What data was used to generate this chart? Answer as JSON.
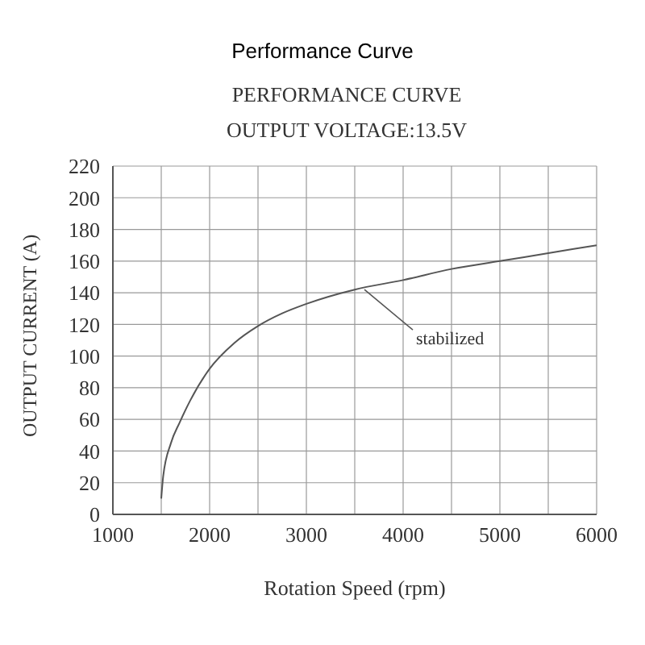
{
  "chart_data": {
    "type": "line",
    "title": "Performance Curve",
    "subtitle": "PERFORMANCE CURVE\nOUTPUT VOLTAGE:13.5V",
    "xlabel": "Rotation Speed (rpm)",
    "ylabel": "OUTPUT CURRENT (A)",
    "series": [
      {
        "color": "#555555",
        "x": [
          1500,
          1520,
          1600,
          1690,
          1800,
          2000,
          2250,
          2500,
          2750,
          3000,
          3500,
          4000,
          4500,
          5000,
          5500,
          6000
        ],
        "values": [
          10,
          24,
          45,
          58,
          72,
          92,
          108,
          119,
          127,
          133,
          142,
          148,
          155,
          160,
          165,
          170
        ]
      }
    ],
    "annotations": [
      {
        "text": "stabilized",
        "x": 3600,
        "y": 142
      }
    ],
    "xlim": [
      1000,
      6000
    ],
    "xticks": [
      1000,
      {
        "value": 1500,
        "label": null
      },
      2000,
      {
        "value": 2500,
        "label": null
      },
      3000,
      {
        "value": 3500,
        "label": null
      },
      4000,
      {
        "value": 4500,
        "label": null
      },
      5000,
      {
        "value": 5500,
        "label": null
      },
      6000
    ],
    "ylim": [
      0,
      220
    ],
    "yticks": [
      0,
      20,
      40,
      60,
      80,
      100,
      120,
      140,
      160,
      180,
      200,
      220
    ],
    "grid": true,
    "legend": false,
    "marker": "none",
    "line_style": "solid"
  }
}
